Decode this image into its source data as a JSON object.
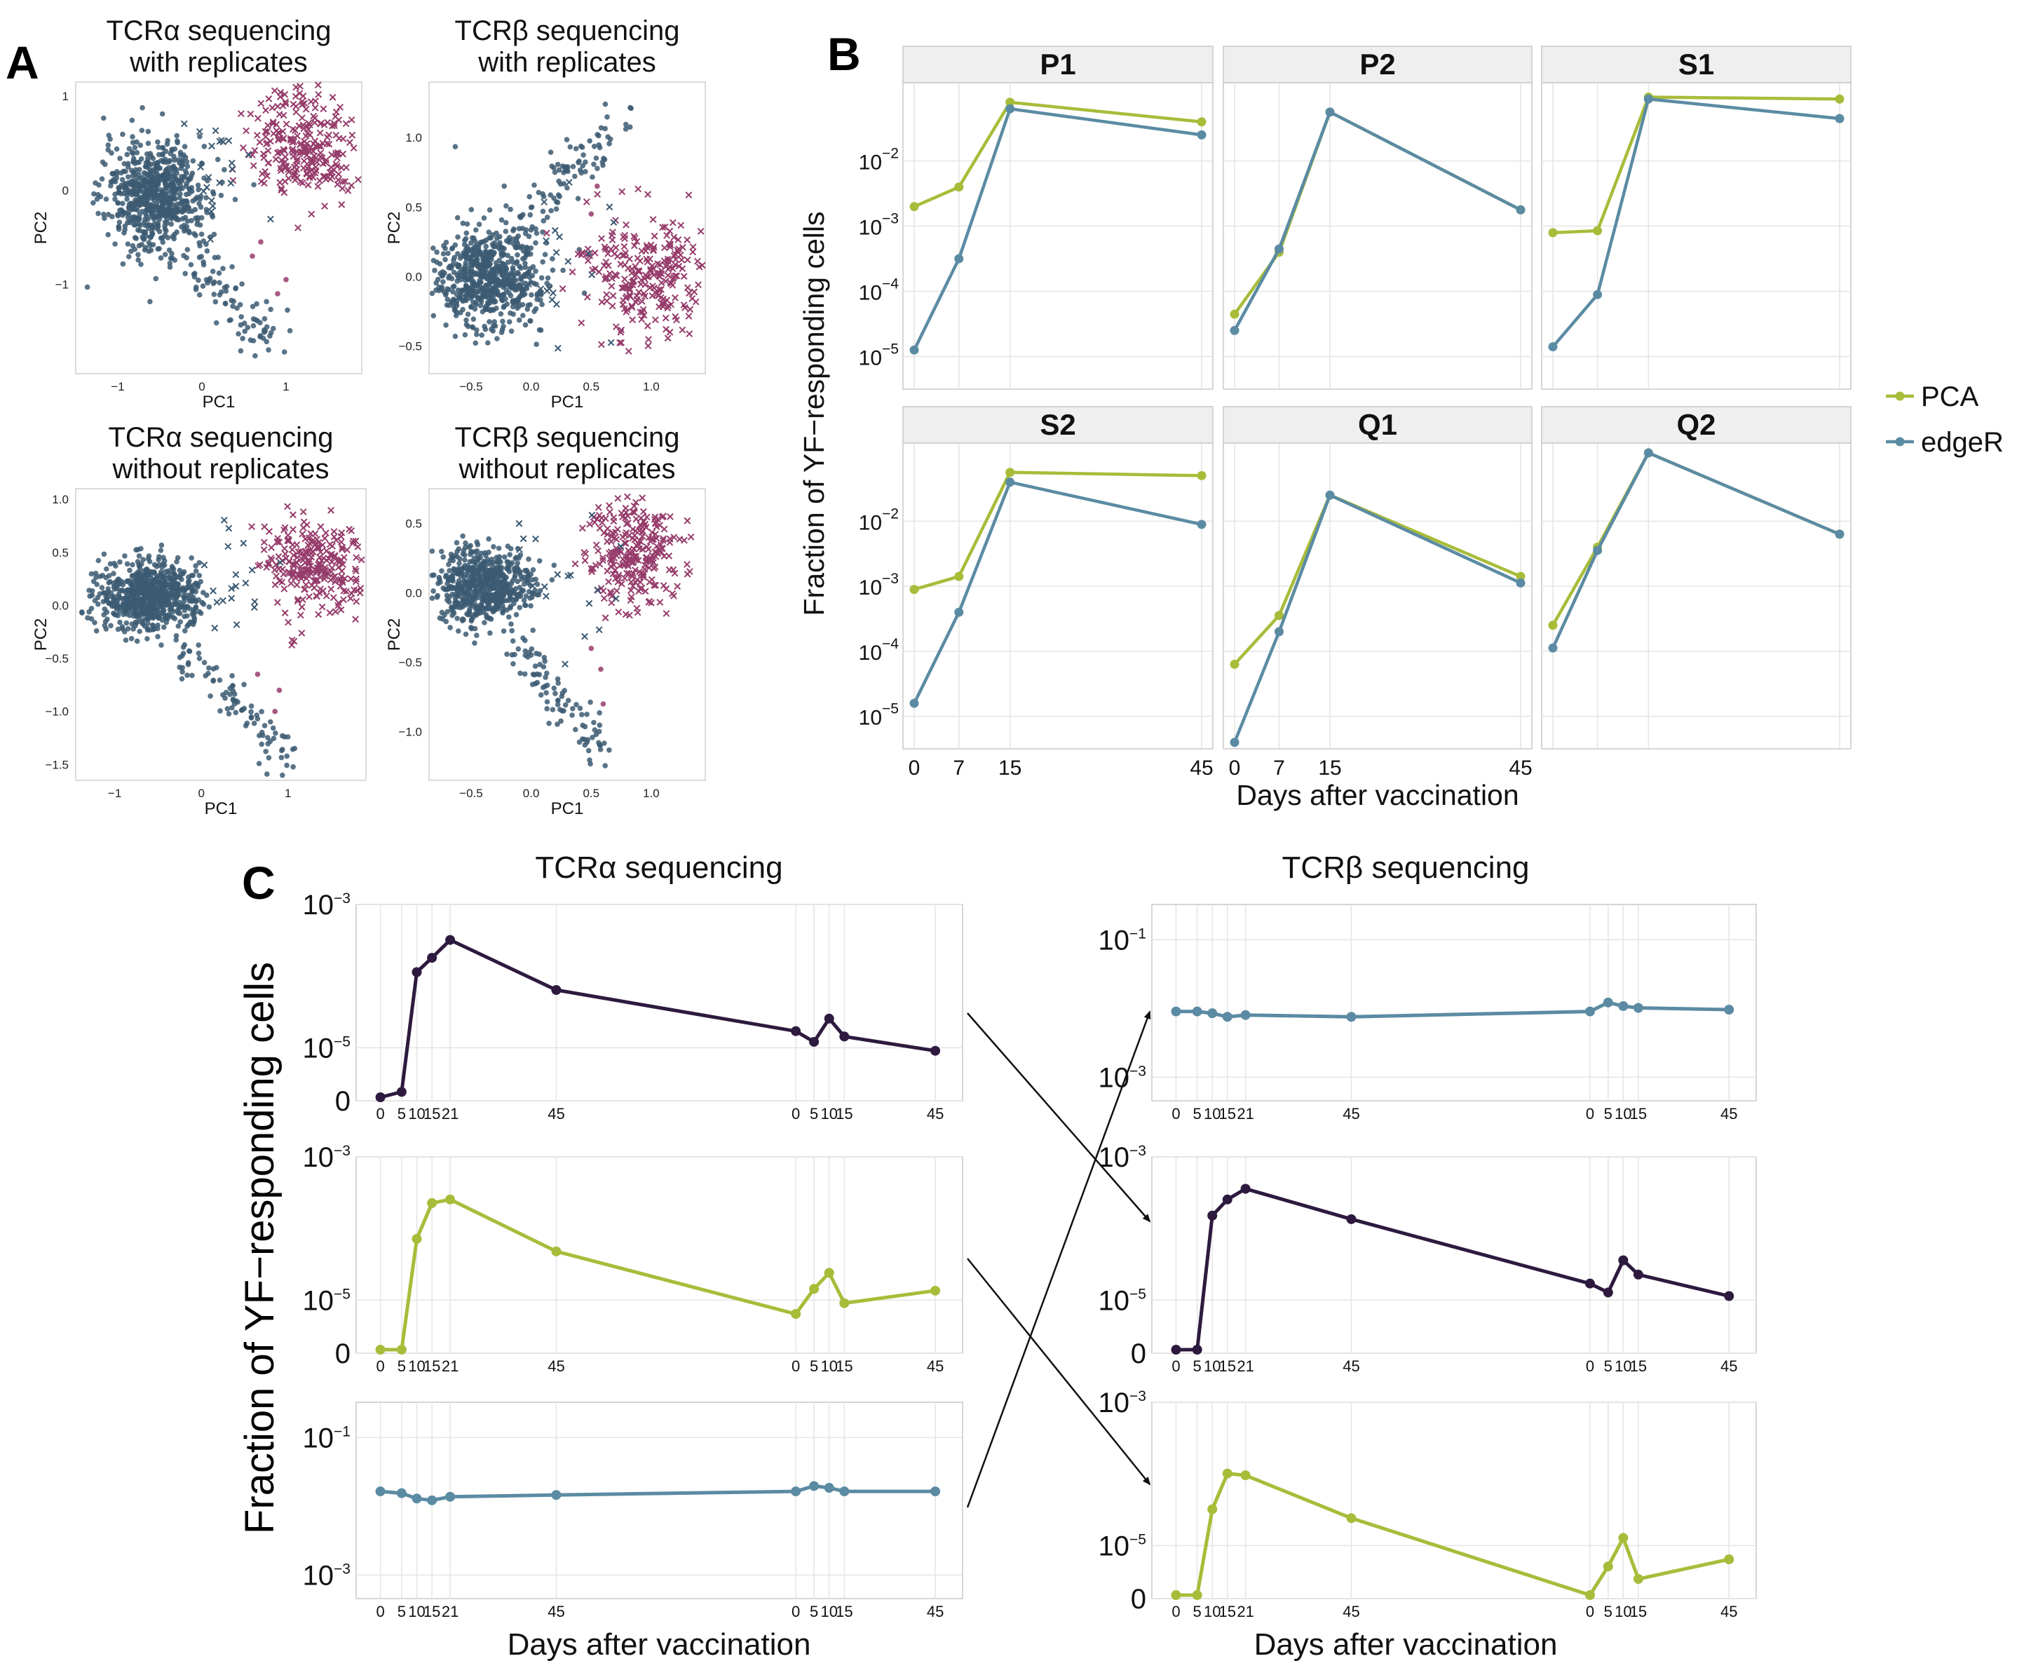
{
  "colors": {
    "responding": "#963c6b",
    "other": "#3c5a72",
    "pca": "#a8bc3a",
    "edger": "#5b8ba3",
    "combined": "#2e1a3e",
    "grid": "#e4e4e4",
    "strip_bg": "#efefef"
  },
  "panel_labels": {
    "a": "A",
    "b": "B",
    "c": "C"
  },
  "chart_data": [
    {
      "id": "A1",
      "type": "scatter",
      "title": [
        "TCRα sequencing",
        "with replicates"
      ],
      "xlabel": "PC1",
      "ylabel": "PC2",
      "xlim": [
        -1.5,
        1.9
      ],
      "ylim": [
        -1.95,
        1.15
      ],
      "xticks": [
        [
          -1,
          "−1"
        ],
        [
          0,
          "0"
        ],
        [
          1,
          "1"
        ]
      ],
      "yticks": [
        [
          1,
          "1"
        ],
        [
          0,
          "0"
        ],
        [
          -1,
          "−1"
        ]
      ],
      "cloud": {
        "center": [
          -0.55,
          -0.05
        ],
        "spread": [
          0.3,
          0.28
        ],
        "n": 700
      },
      "tail": {
        "from": [
          -0.25,
          -0.6
        ],
        "to": [
          0.85,
          -1.7
        ],
        "n": 95,
        "jitter": 0.12
      },
      "crosses": {
        "center": [
          1.2,
          0.45
        ],
        "spread": [
          0.3,
          0.3
        ],
        "n": 260
      },
      "stray_crosses": 22,
      "magenta_dots": [
        [
          0.6,
          -0.7
        ],
        [
          1.0,
          -0.95
        ],
        [
          0.9,
          -1.1
        ],
        [
          0.7,
          -0.55
        ]
      ]
    },
    {
      "id": "A2",
      "type": "scatter",
      "title": [
        "TCRβ sequencing",
        "with replicates"
      ],
      "xlabel": "PC1",
      "ylabel": "PC2",
      "xlim": [
        -0.85,
        1.45
      ],
      "ylim": [
        -0.7,
        1.4
      ],
      "xticks": [
        [
          -0.5,
          "−0.5"
        ],
        [
          0,
          "0.0"
        ],
        [
          0.5,
          "0.5"
        ],
        [
          1,
          "1.0"
        ]
      ],
      "yticks": [
        [
          1,
          "1.0"
        ],
        [
          0.5,
          "0.5"
        ],
        [
          0,
          "0.0"
        ],
        [
          -0.5,
          "−0.5"
        ]
      ],
      "cloud": {
        "center": [
          -0.35,
          0.0
        ],
        "spread": [
          0.22,
          0.18
        ],
        "n": 650
      },
      "tail": {
        "from": [
          -0.1,
          0.35
        ],
        "to": [
          0.75,
          1.15
        ],
        "n": 90,
        "jitter": 0.08
      },
      "crosses": {
        "center": [
          0.95,
          0.0
        ],
        "spread": [
          0.25,
          0.22
        ],
        "n": 260
      },
      "stray_crosses": 20,
      "magenta_dots": [
        [
          0.55,
          0.65
        ],
        [
          0.5,
          0.45
        ],
        [
          0.62,
          0.2
        ]
      ]
    },
    {
      "id": "A3",
      "type": "scatter",
      "title": [
        "TCRα sequencing",
        "without replicates"
      ],
      "xlabel": "PC1",
      "ylabel": "PC2",
      "xlim": [
        -1.45,
        1.9
      ],
      "ylim": [
        -1.65,
        1.1
      ],
      "xticks": [
        [
          -1,
          "−1"
        ],
        [
          0,
          "0"
        ],
        [
          1,
          "1"
        ]
      ],
      "yticks": [
        [
          1,
          "1.0"
        ],
        [
          0.5,
          "0.5"
        ],
        [
          0,
          "0.0"
        ],
        [
          -0.5,
          "−0.5"
        ],
        [
          -1,
          "−1.0"
        ],
        [
          -1.5,
          "−1.5"
        ]
      ],
      "cloud": {
        "center": [
          -0.6,
          0.1
        ],
        "spread": [
          0.3,
          0.16
        ],
        "n": 700
      },
      "tail": {
        "from": [
          -0.3,
          -0.35
        ],
        "to": [
          1.0,
          -1.45
        ],
        "n": 95,
        "jitter": 0.1
      },
      "crosses": {
        "center": [
          1.3,
          0.4
        ],
        "spread": [
          0.3,
          0.22
        ],
        "n": 260
      },
      "stray_crosses": 20,
      "magenta_dots": [
        [
          0.65,
          -0.65
        ],
        [
          0.9,
          -0.8
        ],
        [
          0.85,
          -1.0
        ]
      ]
    },
    {
      "id": "A4",
      "type": "scatter",
      "title": [
        "TCRβ sequencing",
        "without replicates"
      ],
      "xlabel": "PC1",
      "ylabel": "PC2",
      "xlim": [
        -0.85,
        1.45
      ],
      "ylim": [
        -1.35,
        0.75
      ],
      "xticks": [
        [
          -0.5,
          "−0.5"
        ],
        [
          0,
          "0.0"
        ],
        [
          0.5,
          "0.5"
        ],
        [
          1,
          "1.0"
        ]
      ],
      "yticks": [
        [
          0.5,
          "0.5"
        ],
        [
          0,
          "0.0"
        ],
        [
          -0.5,
          "−0.5"
        ],
        [
          -1,
          "−1.0"
        ]
      ],
      "cloud": {
        "center": [
          -0.4,
          0.05
        ],
        "spread": [
          0.2,
          0.13
        ],
        "n": 650
      },
      "tail": {
        "from": [
          -0.15,
          -0.35
        ],
        "to": [
          0.6,
          -1.15
        ],
        "n": 90,
        "jitter": 0.08
      },
      "crosses": {
        "center": [
          0.85,
          0.3
        ],
        "spread": [
          0.22,
          0.2
        ],
        "n": 260
      },
      "stray_crosses": 18,
      "magenta_dots": [
        [
          0.5,
          -0.4
        ],
        [
          0.58,
          -0.55
        ],
        [
          0.6,
          -0.8
        ]
      ]
    },
    {
      "id": "B",
      "type": "line",
      "ylabel": "Fraction of YF−responding cells",
      "xlabel": "Days after vaccination",
      "x": [
        0,
        7,
        15,
        45
      ],
      "xticks": [
        "0",
        "7",
        "15",
        "45"
      ],
      "yticks_exp": [
        -5,
        -4,
        -3,
        -2
      ],
      "ylim_log10": [
        -5.5,
        -0.8
      ],
      "legend": [
        "PCA",
        "edgeR"
      ],
      "facets": [
        {
          "label": "P1",
          "pca": [
            -2.7,
            -2.4,
            -1.1,
            -1.4
          ],
          "edger": [
            -4.9,
            -3.5,
            -1.2,
            -1.6
          ]
        },
        {
          "label": "P2",
          "pca": [
            -4.35,
            -3.4,
            -1.25,
            -2.75
          ],
          "edger": [
            -4.6,
            -3.35,
            -1.25,
            -2.75
          ]
        },
        {
          "label": "S1",
          "pca": [
            -3.1,
            -3.07,
            -1.02,
            -1.05
          ],
          "edger": [
            -4.85,
            -4.05,
            -1.05,
            -1.35
          ]
        },
        {
          "label": "S2",
          "pca": [
            -3.05,
            -2.85,
            -1.25,
            -1.3
          ],
          "edger": [
            -4.8,
            -3.4,
            -1.4,
            -2.05
          ]
        },
        {
          "label": "Q1",
          "pca": [
            -4.2,
            -3.45,
            -1.6,
            -2.85
          ],
          "edger": [
            -5.4,
            -3.7,
            -1.6,
            -2.95
          ]
        },
        {
          "label": "Q2",
          "pca": [
            -3.6,
            -2.4,
            -0.95,
            -2.2
          ],
          "edger": [
            -3.95,
            -2.45,
            -0.95,
            -2.2
          ]
        }
      ]
    },
    {
      "id": "C",
      "type": "line",
      "xlabel": "Days after vaccination",
      "ylabel": "Fraction of YF−responding cells",
      "x_days": [
        0,
        5,
        10,
        15,
        21,
        45,
        0,
        5,
        10,
        15,
        45
      ],
      "xticks": [
        "0",
        "5",
        "10",
        "15",
        "21",
        "45",
        "0",
        "5",
        "10",
        "15",
        "45"
      ],
      "columns": [
        {
          "title": "TCRα sequencing",
          "rows": [
            {
              "kind": "combined",
              "yticks": [
                [
                  "0",
                  ""
                ],
                [
                  "10",
                  "−5"
                ],
                [
                  "10",
                  "−3"
                ]
              ],
              "values": [
                0.0,
                0.03,
                0.7,
                0.78,
                0.88,
                0.6,
                0.37,
                0.31,
                0.44,
                0.34,
                0.26
              ]
            },
            {
              "kind": "pca",
              "yticks": [
                [
                  "0",
                  ""
                ],
                [
                  "10",
                  "−5"
                ],
                [
                  "10",
                  "−3"
                ]
              ],
              "values": [
                0.0,
                0.0,
                0.62,
                0.82,
                0.84,
                0.55,
                0.2,
                0.34,
                0.43,
                0.26,
                0.33
              ]
            },
            {
              "kind": "edger",
              "yticks": [
                [
                  "10",
                  "−3"
                ],
                [
                  "10",
                  "−1"
                ]
              ],
              "values": [
                0.58,
                0.57,
                0.54,
                0.53,
                0.55,
                0.56,
                0.58,
                0.61,
                0.6,
                0.58,
                0.58
              ]
            }
          ]
        },
        {
          "title": "TCRβ sequencing",
          "rows": [
            {
              "kind": "edger",
              "yticks": [
                [
                  "10",
                  "−3"
                ],
                [
                  "10",
                  "−1"
                ]
              ],
              "values": [
                0.48,
                0.48,
                0.47,
                0.45,
                0.46,
                0.45,
                0.48,
                0.53,
                0.51,
                0.5,
                0.49
              ]
            },
            {
              "kind": "combined",
              "yticks": [
                [
                  "0",
                  ""
                ],
                [
                  "10",
                  "−5"
                ],
                [
                  "10",
                  "−3"
                ]
              ],
              "values": [
                0.0,
                0.0,
                0.75,
                0.84,
                0.9,
                0.73,
                0.37,
                0.32,
                0.5,
                0.42,
                0.3
              ]
            },
            {
              "kind": "pca",
              "yticks": [
                [
                  "0",
                  ""
                ],
                [
                  "10",
                  "−5"
                ],
                [
                  "10",
                  "−3"
                ]
              ],
              "values": [
                0.0,
                0.0,
                0.48,
                0.68,
                0.67,
                0.43,
                0.0,
                0.16,
                0.32,
                0.09,
                0.2
              ]
            }
          ]
        }
      ]
    }
  ]
}
